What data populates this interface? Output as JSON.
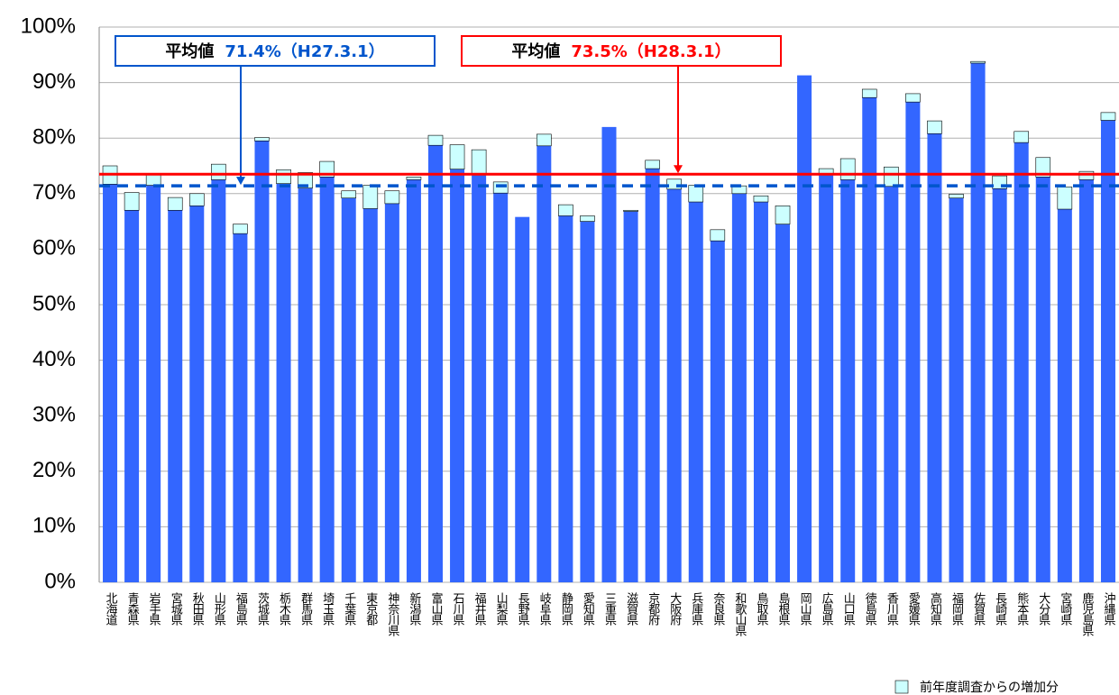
{
  "chart_data": {
    "type": "stacked-bar",
    "categories": [
      "北海道",
      "青森県",
      "岩手県",
      "宮城県",
      "秋田県",
      "山形県",
      "福島県",
      "茨城県",
      "栃木県",
      "群馬県",
      "埼玉県",
      "千葉県",
      "東京都",
      "神奈川県",
      "新潟県",
      "富山県",
      "石川県",
      "福井県",
      "山梨県",
      "長野県",
      "岐阜県",
      "静岡県",
      "愛知県",
      "三重県",
      "滋賀県",
      "京都府",
      "大阪府",
      "兵庫県",
      "奈良県",
      "和歌山県",
      "鳥取県",
      "島根県",
      "岡山県",
      "広島県",
      "山口県",
      "徳島県",
      "香川県",
      "愛媛県",
      "高知県",
      "福岡県",
      "佐賀県",
      "長崎県",
      "熊本県",
      "大分県",
      "宮崎県",
      "鹿児島県",
      "沖縄県"
    ],
    "series": [
      {
        "color": "#3366ff",
        "values": [
          71.7,
          67.0,
          71.5,
          67.0,
          67.8,
          72.5,
          62.8,
          79.5,
          71.8,
          71.0,
          73.0,
          69.2,
          67.3,
          68.2,
          72.5,
          78.7,
          74.4,
          73.5,
          70.1,
          65.8,
          78.6,
          66.0,
          65.0,
          82.0,
          66.8,
          74.5,
          70.8,
          68.5,
          61.5,
          70.0,
          68.5,
          64.5,
          91.3,
          73.5,
          72.5,
          87.3,
          71.3,
          86.5,
          80.8,
          69.2,
          93.5,
          70.9,
          79.2,
          73.0,
          67.2,
          72.5,
          83.2
        ]
      },
      {
        "name": "前年度調査からの増加分",
        "color": "#ccffff",
        "values": [
          3.3,
          3.2,
          2.0,
          2.3,
          2.2,
          2.8,
          1.7,
          0.6,
          2.5,
          2.8,
          2.8,
          1.3,
          4.2,
          2.3,
          0.5,
          1.8,
          4.4,
          4.4,
          2.0,
          0,
          2.1,
          2.0,
          1.0,
          0,
          0.2,
          1.5,
          1.8,
          3.0,
          2.0,
          1.4,
          1.1,
          3.3,
          0,
          1.0,
          3.8,
          1.5,
          3.5,
          1.5,
          2.3,
          0.7,
          0.3,
          2.3,
          2.0,
          3.5,
          4.0,
          1.5,
          1.4
        ]
      }
    ],
    "ylim": [
      0,
      100
    ],
    "yticks": [
      {
        "value": 0,
        "label": "0%"
      },
      {
        "value": 10,
        "label": "10%"
      },
      {
        "value": 20,
        "label": "20%"
      },
      {
        "value": 30,
        "label": "30%"
      },
      {
        "value": 40,
        "label": "40%"
      },
      {
        "value": 50,
        "label": "50%"
      },
      {
        "value": 60,
        "label": "60%"
      },
      {
        "value": 70,
        "label": "70%"
      },
      {
        "value": 80,
        "label": "80%"
      },
      {
        "value": 90,
        "label": "90%"
      },
      {
        "value": 100,
        "label": "100%"
      }
    ],
    "grid": true,
    "reference_lines": [
      {
        "label": "平均値",
        "value": 71.4,
        "value_label": "71.4%",
        "date": "（H27.3.1）",
        "color": "#0055cc",
        "dashed": true
      },
      {
        "label": "平均値",
        "value": 73.5,
        "value_label": "73.5%",
        "date": "（H28.3.1）",
        "color": "#ff0000",
        "dashed": false
      }
    ],
    "legend": "bottom-right"
  }
}
